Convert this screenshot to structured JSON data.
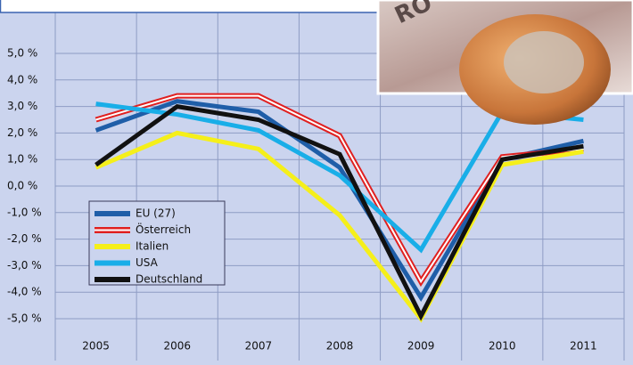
{
  "chart_data": {
    "type": "line",
    "categories": [
      "2005",
      "2006",
      "2007",
      "2008",
      "2009",
      "2010",
      "2011"
    ],
    "series": [
      {
        "name": "EU (27)",
        "color": "#1f5ea8",
        "values": [
          2.1,
          3.2,
          2.8,
          0.7,
          -4.2,
          1.0,
          1.7
        ]
      },
      {
        "name": "Österreich",
        "color": "#e02020",
        "values": [
          2.5,
          3.4,
          3.4,
          1.9,
          -3.6,
          1.1,
          1.4
        ]
      },
      {
        "name": "Italien",
        "color": "#f5ef1a",
        "values": [
          0.7,
          2.0,
          1.4,
          -1.1,
          -5.0,
          0.8,
          1.3
        ]
      },
      {
        "name": "USA",
        "color": "#19aee8",
        "values": [
          3.1,
          2.7,
          2.1,
          0.4,
          -2.4,
          2.8,
          2.5
        ]
      },
      {
        "name": "Deutschland",
        "color": "#111111",
        "values": [
          0.8,
          3.0,
          2.5,
          1.2,
          -4.9,
          1.0,
          1.5
        ]
      }
    ],
    "ylim": [
      -5.5,
      6
    ],
    "yticks": [
      {
        "value": -5,
        "label": "-5,0 %"
      },
      {
        "value": -4,
        "label": "-4,0 %"
      },
      {
        "value": -3,
        "label": "-3,0 %"
      },
      {
        "value": -2,
        "label": "-2,0 %"
      },
      {
        "value": -1,
        "label": "-1,0 %"
      },
      {
        "value": 0,
        "label": "0,0 %"
      },
      {
        "value": 1,
        "label": "1,0 %"
      },
      {
        "value": 2,
        "label": "2,0 %"
      },
      {
        "value": 3,
        "label": "3,0 %"
      },
      {
        "value": 4,
        "label": "4,0 %"
      },
      {
        "value": 5,
        "label": "5,0 %"
      }
    ],
    "grid": true
  }
}
